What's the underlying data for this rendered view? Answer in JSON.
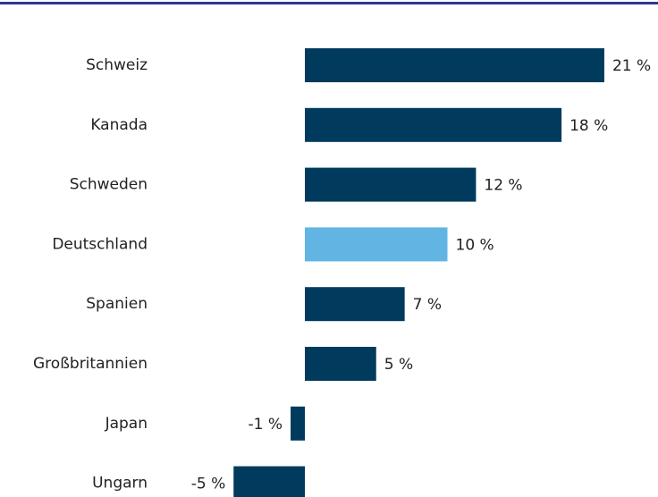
{
  "chart_data": {
    "type": "bar",
    "orientation": "horizontal",
    "categories": [
      "Schweiz",
      "Kanada",
      "Schweden",
      "Deutschland",
      "Spanien",
      "Großbritannien",
      "Japan",
      "Ungarn"
    ],
    "values": [
      21,
      18,
      12,
      10,
      7,
      5,
      -1,
      -5
    ],
    "value_labels": [
      "21 %",
      "18 %",
      "12 %",
      "10 %",
      "7 %",
      "5 %",
      "-1 %",
      "-5 %"
    ],
    "colors": [
      "#003a5c",
      "#003a5c",
      "#003a5c",
      "#62b4e3",
      "#003a5c",
      "#003a5c",
      "#003a5c",
      "#003a5c"
    ]
  }
}
